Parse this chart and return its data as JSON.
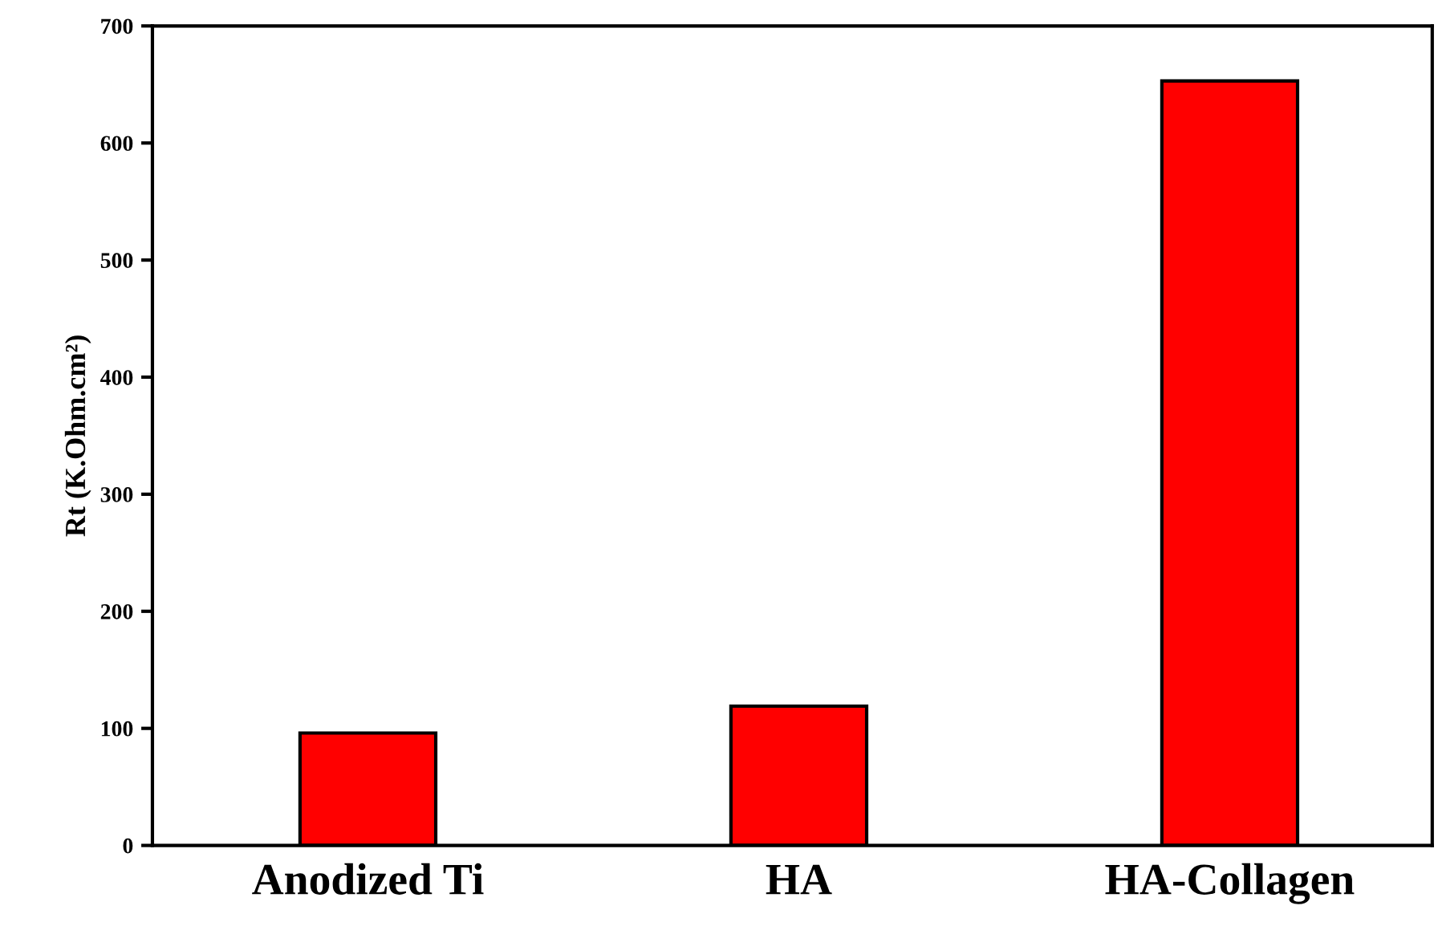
{
  "chart_data": {
    "type": "bar",
    "ylabel": "Rt (K.Ohm.cm²)",
    "categories": [
      "Anodized Ti",
      "HA",
      "HA-Collagen"
    ],
    "values": [
      96,
      119,
      653
    ],
    "color": "#ff0000",
    "ylim": [
      0,
      700
    ],
    "yticks": [
      0,
      100,
      200,
      300,
      400,
      500,
      600,
      700
    ],
    "grid": false,
    "legend": false
  }
}
